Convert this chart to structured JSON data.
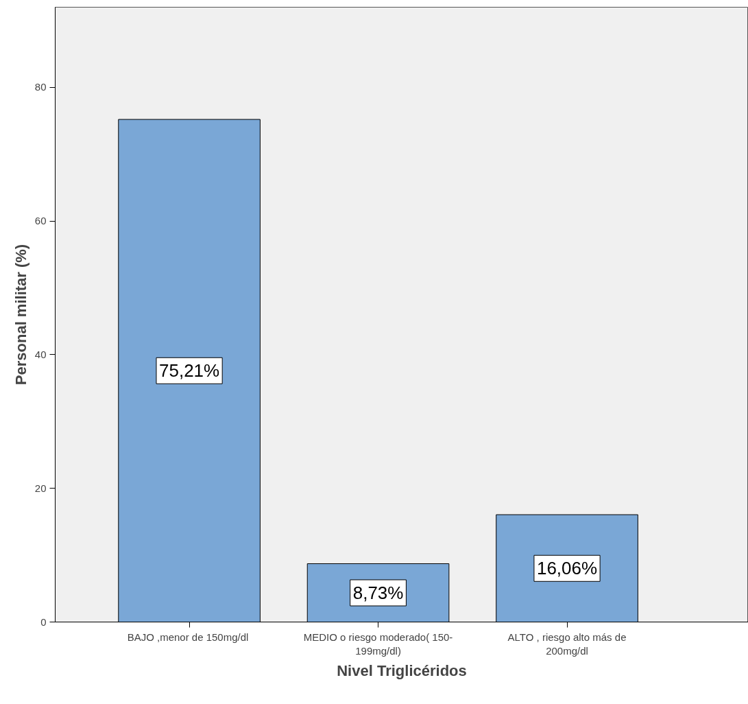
{
  "chart_data": {
    "type": "bar",
    "xlabel": "Nivel Triglicéridos",
    "ylabel": "Personal militar (%)",
    "categories": [
      "BAJO ,menor de  150mg/dl",
      "MEDIO o riesgo moderado( 150-\n199mg/dl)",
      "ALTO , riesgo alto más de\n200mg/dl"
    ],
    "values": [
      75.21,
      8.73,
      16.06
    ],
    "value_labels": [
      "75,21%",
      "8,73%",
      "16,06%"
    ],
    "color": "#7aa7d6",
    "ylim": [
      0,
      92
    ],
    "yticks": [
      0,
      20,
      40,
      60,
      80
    ],
    "grid": false
  }
}
